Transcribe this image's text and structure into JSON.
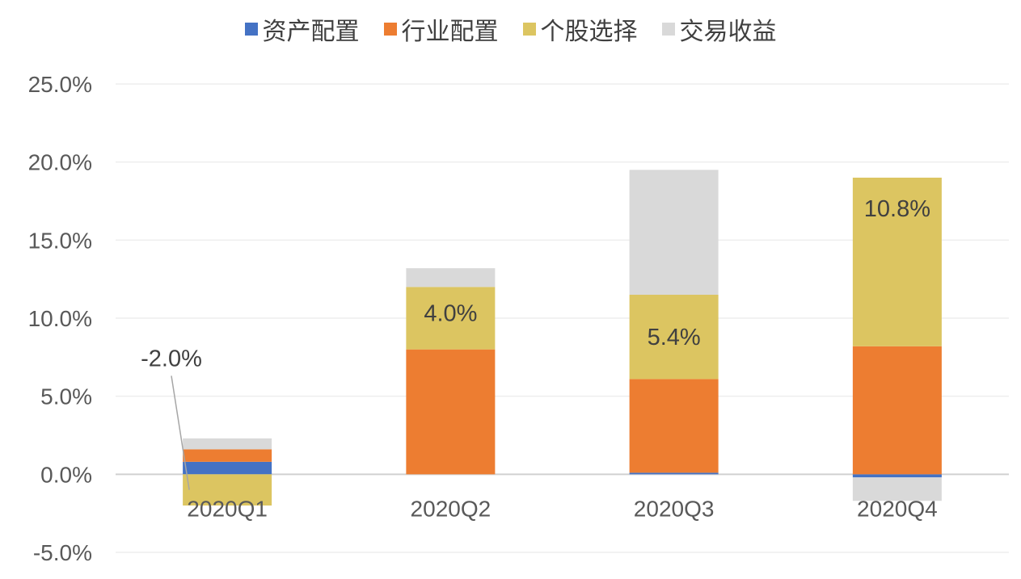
{
  "chart_data": {
    "type": "bar",
    "stacked": true,
    "categories": [
      "2020Q1",
      "2020Q2",
      "2020Q3",
      "2020Q4"
    ],
    "series": [
      {
        "name": "资产配置",
        "color": "#4472C4",
        "values": [
          0.8,
          0.0,
          0.1,
          -0.2
        ]
      },
      {
        "name": "行业配置",
        "color": "#ED7D31",
        "values": [
          0.8,
          8.0,
          6.0,
          8.2
        ]
      },
      {
        "name": "个股选择",
        "color": "#DCC561",
        "values": [
          -2.0,
          4.0,
          5.4,
          10.8
        ]
      },
      {
        "name": "交易收益",
        "color": "#D9D9D9",
        "values": [
          0.7,
          1.2,
          8.0,
          -1.5
        ]
      }
    ],
    "data_labels": [
      {
        "category": "2020Q1",
        "series": "个股选择",
        "text": "-2.0%"
      },
      {
        "category": "2020Q2",
        "series": "个股选择",
        "text": "4.0%"
      },
      {
        "category": "2020Q3",
        "series": "个股选择",
        "text": "5.4%"
      },
      {
        "category": "2020Q4",
        "series": "个股选择",
        "text": "10.8%"
      }
    ],
    "y_ticks": [
      "25.0%",
      "20.0%",
      "15.0%",
      "10.0%",
      "5.0%",
      "0.0%",
      "-5.0%"
    ],
    "ylim": [
      -5,
      25
    ],
    "grid": true,
    "legend_position": "top-center",
    "title": "",
    "xlabel": "",
    "ylabel": ""
  }
}
